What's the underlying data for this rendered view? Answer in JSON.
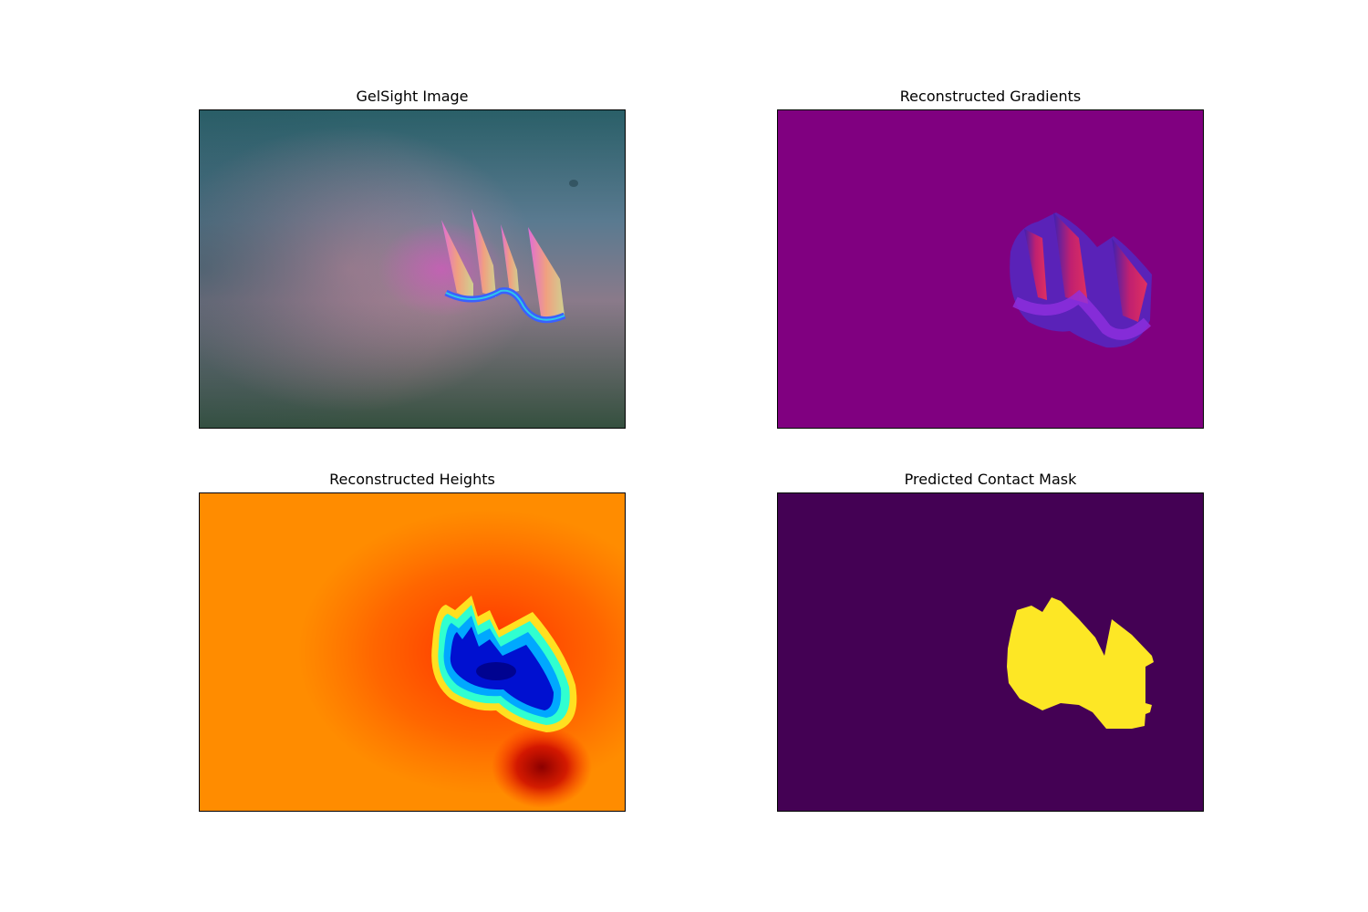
{
  "figure": {
    "panels": [
      {
        "title": "GelSight Image",
        "colormap": "rgb"
      },
      {
        "title": "Reconstructed Gradients",
        "colormap": "rgb",
        "background_color": "#800080"
      },
      {
        "title": "Reconstructed Heights",
        "colormap": "jet-like",
        "background_color": "#ff8c00"
      },
      {
        "title": "Predicted Contact Mask",
        "colormap": "viridis",
        "background_color": "#440154",
        "foreground_color": "#fde725"
      }
    ]
  }
}
